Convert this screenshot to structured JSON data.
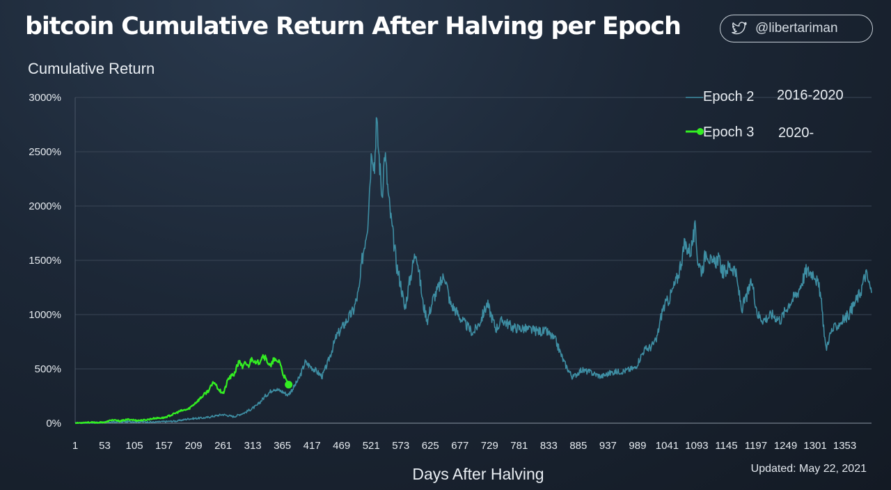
{
  "header": {
    "title": "bitcoin Cumulative Return After Halving per Epoch",
    "handle": "@libertariman",
    "updated": "Updated: May 22, 2021"
  },
  "colors": {
    "epoch2": "#3e8ea3",
    "epoch3": "#33ee22",
    "grid": "#3a4656"
  },
  "chart_data": {
    "type": "line",
    "title": "bitcoin Cumulative Return After Halving per Epoch",
    "ylabel": "Cumulative Return",
    "xlabel": "Days After Halving",
    "ylim": [
      0,
      3000
    ],
    "xlim": [
      1,
      1400
    ],
    "grid": true,
    "legend_position": "top-right",
    "x_ticks": [
      1,
      53,
      105,
      157,
      209,
      261,
      313,
      365,
      417,
      469,
      521,
      573,
      625,
      677,
      729,
      781,
      833,
      885,
      937,
      989,
      1041,
      1093,
      1145,
      1197,
      1249,
      1301,
      1353
    ],
    "y_ticks": [
      0,
      500,
      1000,
      1500,
      2000,
      2500,
      3000
    ],
    "y_tick_labels": [
      "0%",
      "500%",
      "1000%",
      "1500%",
      "2000%",
      "2500%",
      "3000%"
    ],
    "series": [
      {
        "name": "Epoch 2",
        "period": "2016-2020",
        "x": [
          1,
          30,
          60,
          100,
          140,
          180,
          200,
          230,
          260,
          280,
          300,
          320,
          335,
          350,
          365,
          375,
          385,
          395,
          405,
          420,
          435,
          445,
          460,
          470,
          490,
          500,
          505,
          515,
          522,
          527,
          530,
          535,
          540,
          545,
          552,
          560,
          566,
          574,
          580,
          590,
          600,
          612,
          620,
          630,
          640,
          650,
          660,
          668,
          680,
          700,
          712,
          725,
          740,
          752,
          770,
          790,
          810,
          830,
          845,
          860,
          875,
          890,
          905,
          925,
          945,
          965,
          985,
          1000,
          1012,
          1022,
          1033,
          1045,
          1060,
          1072,
          1082,
          1090,
          1095,
          1102,
          1110,
          1120,
          1130,
          1140,
          1150,
          1160,
          1172,
          1190,
          1200,
          1210,
          1225,
          1240,
          1255,
          1270,
          1285,
          1300,
          1310,
          1320,
          1325,
          1330,
          1340,
          1350,
          1360,
          1370,
          1380,
          1390,
          1395,
          1400
        ],
        "values": [
          0,
          5,
          10,
          15,
          10,
          20,
          40,
          50,
          80,
          60,
          100,
          160,
          250,
          320,
          290,
          260,
          330,
          420,
          560,
          500,
          430,
          560,
          800,
          880,
          1040,
          1230,
          1500,
          1850,
          2550,
          2350,
          2800,
          2450,
          2100,
          2500,
          2050,
          1700,
          1450,
          1250,
          1050,
          1350,
          1600,
          1100,
          950,
          1150,
          1250,
          1370,
          1100,
          1050,
          950,
          830,
          930,
          1100,
          870,
          950,
          880,
          870,
          850,
          840,
          760,
          560,
          420,
          490,
          470,
          430,
          470,
          480,
          510,
          670,
          700,
          760,
          1050,
          1150,
          1350,
          1650,
          1580,
          1780,
          1500,
          1400,
          1600,
          1450,
          1520,
          1380,
          1450,
          1420,
          1050,
          1300,
          1000,
          950,
          1000,
          950,
          1100,
          1200,
          1400,
          1380,
          1200,
          680,
          780,
          850,
          900,
          950,
          1000,
          1100,
          1200,
          1380,
          1300,
          1200
        ]
      },
      {
        "name": "Epoch 3",
        "period": "2020-",
        "x": [
          1,
          20,
          40,
          55,
          65,
          80,
          95,
          110,
          125,
          140,
          157,
          170,
          185,
          200,
          215,
          225,
          235,
          245,
          250,
          255,
          262,
          270,
          280,
          290,
          295,
          300,
          305,
          312,
          318,
          325,
          330,
          335,
          340,
          345,
          350,
          355,
          360,
          365,
          370,
          376
        ],
        "values": [
          0,
          8,
          5,
          10,
          30,
          20,
          35,
          25,
          30,
          45,
          50,
          75,
          110,
          130,
          200,
          250,
          300,
          380,
          340,
          300,
          280,
          410,
          450,
          580,
          500,
          560,
          520,
          610,
          540,
          570,
          630,
          600,
          560,
          520,
          590,
          560,
          580,
          470,
          410,
          355
        ]
      }
    ]
  }
}
